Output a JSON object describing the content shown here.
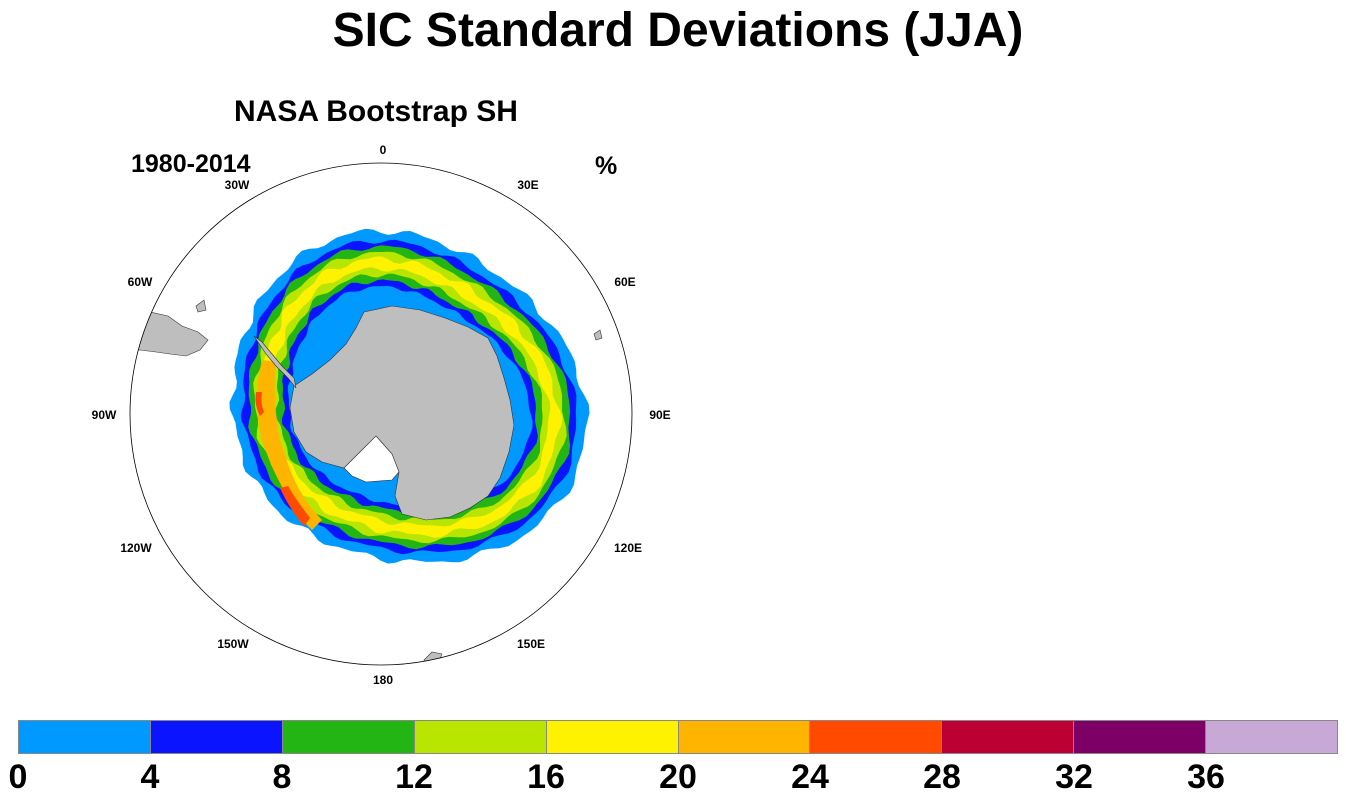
{
  "title": "SIC Standard Deviations (JJA)",
  "panel": {
    "title": "NASA Bootstrap SH",
    "period": "1980-2014",
    "units": "%"
  },
  "longitude_labels": [
    {
      "name": "lon-0",
      "text": "0"
    },
    {
      "name": "lon-30e",
      "text": "30E"
    },
    {
      "name": "lon-60e",
      "text": "60E"
    },
    {
      "name": "lon-90e",
      "text": "90E"
    },
    {
      "name": "lon-120e",
      "text": "120E"
    },
    {
      "name": "lon-150e",
      "text": "150E"
    },
    {
      "name": "lon-180",
      "text": "180"
    },
    {
      "name": "lon-150w",
      "text": "150W"
    },
    {
      "name": "lon-120w",
      "text": "120W"
    },
    {
      "name": "lon-90w",
      "text": "90W"
    },
    {
      "name": "lon-60w",
      "text": "60W"
    },
    {
      "name": "lon-30w",
      "text": "30W"
    }
  ],
  "colorbar": {
    "colors": [
      "#0099ff",
      "#0a14ff",
      "#22b514",
      "#b9e600",
      "#fff200",
      "#ffb400",
      "#ff4a00",
      "#bd0033",
      "#7d0066",
      "#c8a8d6"
    ],
    "labels": [
      "0",
      "4",
      "8",
      "12",
      "16",
      "20",
      "24",
      "28",
      "32",
      "36"
    ]
  },
  "land_color": "#bebebe"
}
